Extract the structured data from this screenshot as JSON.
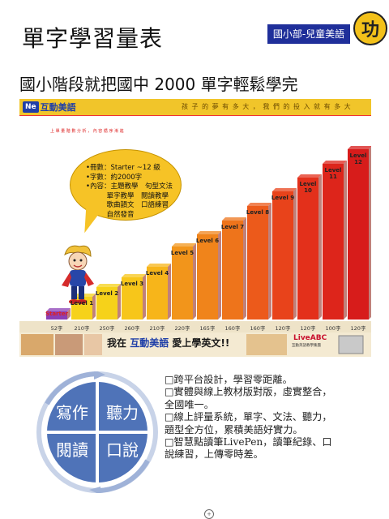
{
  "header": {
    "title": "單字學習量表",
    "badge": "國小部-兒童美語",
    "seal_char": "功",
    "subtitle": "國小階段就把國中 2000 單字輕鬆學完"
  },
  "infographic": {
    "logo_mark": "Ne",
    "logo_text": "互動美語",
    "slogan": "孩 子 的 夢 有 多 大 ， 我 們 的 投 入 就 有 多 大",
    "small_heading": "上 單 量 階 數 分 析 ， 內 容 循 序 漸 進",
    "bubble_lines": [
      "•冊數：Starter ~12 級",
      "•字數：約2000字",
      "•內容：主題教學　句型文法",
      "　　　單字教學　閱讀教學",
      "　　　歌曲韻文　口語練習",
      "　　　自然發音"
    ],
    "levels": [
      {
        "label": "Starter",
        "price": "52字"
      },
      {
        "label": "Level 1",
        "price": "210字"
      },
      {
        "label": "Level 2",
        "price": "250字"
      },
      {
        "label": "Level 3",
        "price": "260字"
      },
      {
        "label": "Level 4",
        "price": "210字"
      },
      {
        "label": "Level 5",
        "price": "220字"
      },
      {
        "label": "Level 6",
        "price": "165字"
      },
      {
        "label": "Level 7",
        "price": "160字"
      },
      {
        "label": "Level 8",
        "price": "160字"
      },
      {
        "label": "Level 9",
        "price": "120字"
      },
      {
        "label": "Level 10",
        "price": "120字"
      },
      {
        "label": "Level 11",
        "price": "100字"
      },
      {
        "label": "Level 12",
        "price": "120字"
      }
    ],
    "banner_pre": "我在",
    "banner_brand": "互動美語",
    "banner_post": "愛上學英文!!",
    "liveabc": "LiveABC",
    "liveabc_sub": "互動英語教學集團"
  },
  "cycle": {
    "items": [
      "寫作",
      "聽力",
      "閱讀",
      "口說"
    ]
  },
  "features": [
    "□跨平台設計，學習零距離。",
    "□實體與線上教材版對版，虛實整合，全國唯一。",
    "□線上評量系統，單字、文法、聽力，題型全方位，累積美語好實力。",
    "□智慧點讀筆LivePen，讀筆紀錄、口說練習，上傳零時差。"
  ],
  "colors": {
    "badge_bg": "#1f2f9a",
    "header_yellow": "#f1c52a",
    "cycle_blue": "#4f73b8"
  }
}
